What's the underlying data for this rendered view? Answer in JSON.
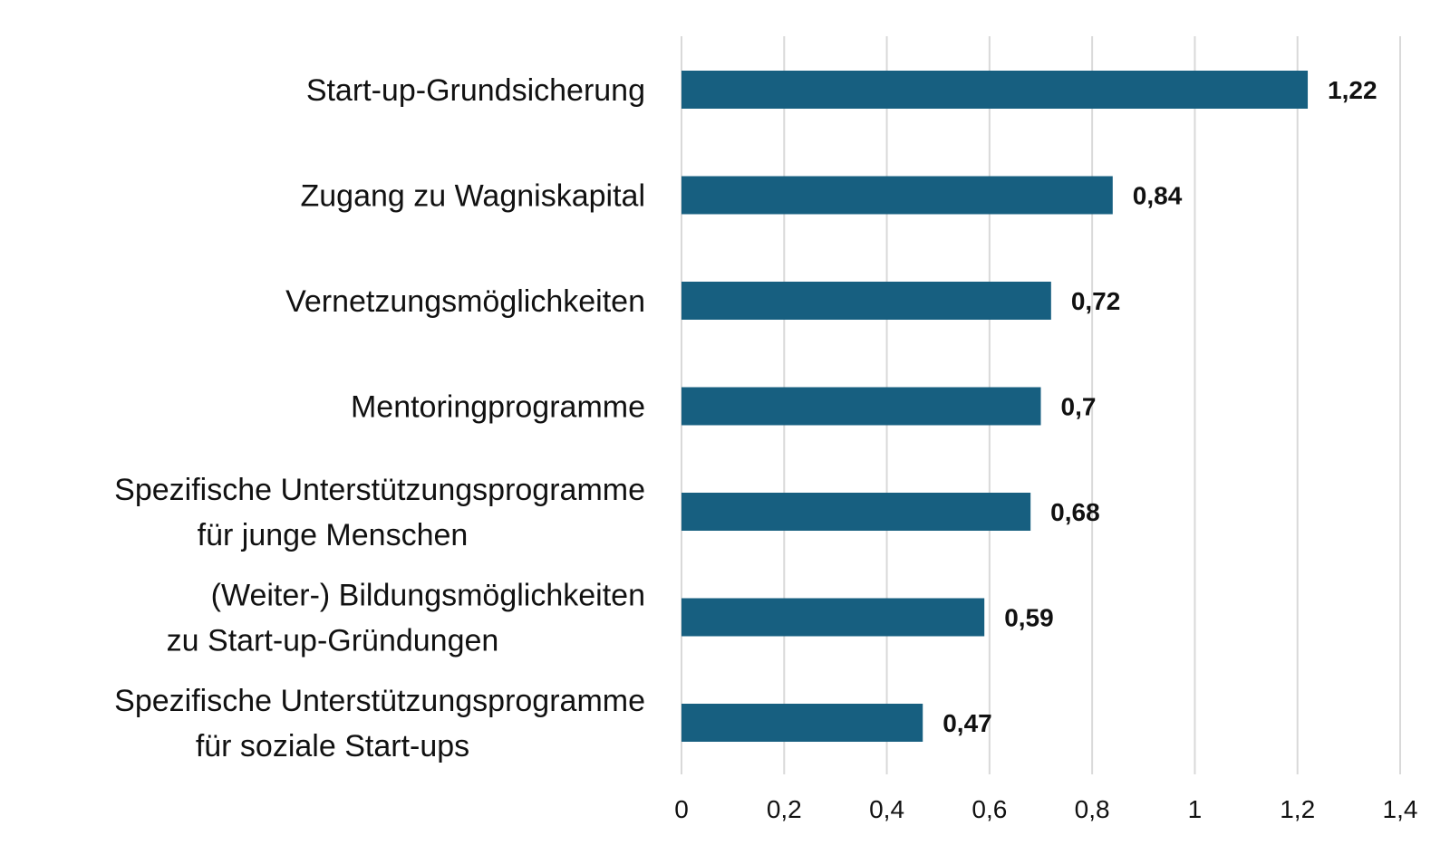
{
  "chart_data": {
    "type": "bar",
    "orientation": "horizontal",
    "categories": [
      [
        "Start-up-Grundsicherung"
      ],
      [
        "Zugang zu Wagniskapital"
      ],
      [
        "Vernetzungsmöglichkeiten"
      ],
      [
        "Mentoringprogramme"
      ],
      [
        "Spezifische Unterstützungsprogramme",
        "für junge Menschen"
      ],
      [
        "(Weiter-) Bildungsmöglichkeiten",
        "zu Start-up-Gründungen"
      ],
      [
        "Spezifische Unterstützungsprogramme",
        "für soziale Start-ups"
      ]
    ],
    "values": [
      1.22,
      0.84,
      0.72,
      0.7,
      0.68,
      0.59,
      0.47
    ],
    "value_labels": [
      "1,22",
      "0,84",
      "0,72",
      "0,7",
      "0,68",
      "0,59",
      "0,47"
    ],
    "xlim": [
      0,
      1.4
    ],
    "x_ticks": [
      0,
      0.2,
      0.4,
      0.6,
      0.8,
      1,
      1.2,
      1.4
    ],
    "x_tick_labels": [
      "0",
      "0,2",
      "0,4",
      "0,6",
      "0,8",
      "1",
      "1,2",
      "1,4"
    ],
    "bar_color": "#175f80",
    "grid": true,
    "legend": "none"
  }
}
